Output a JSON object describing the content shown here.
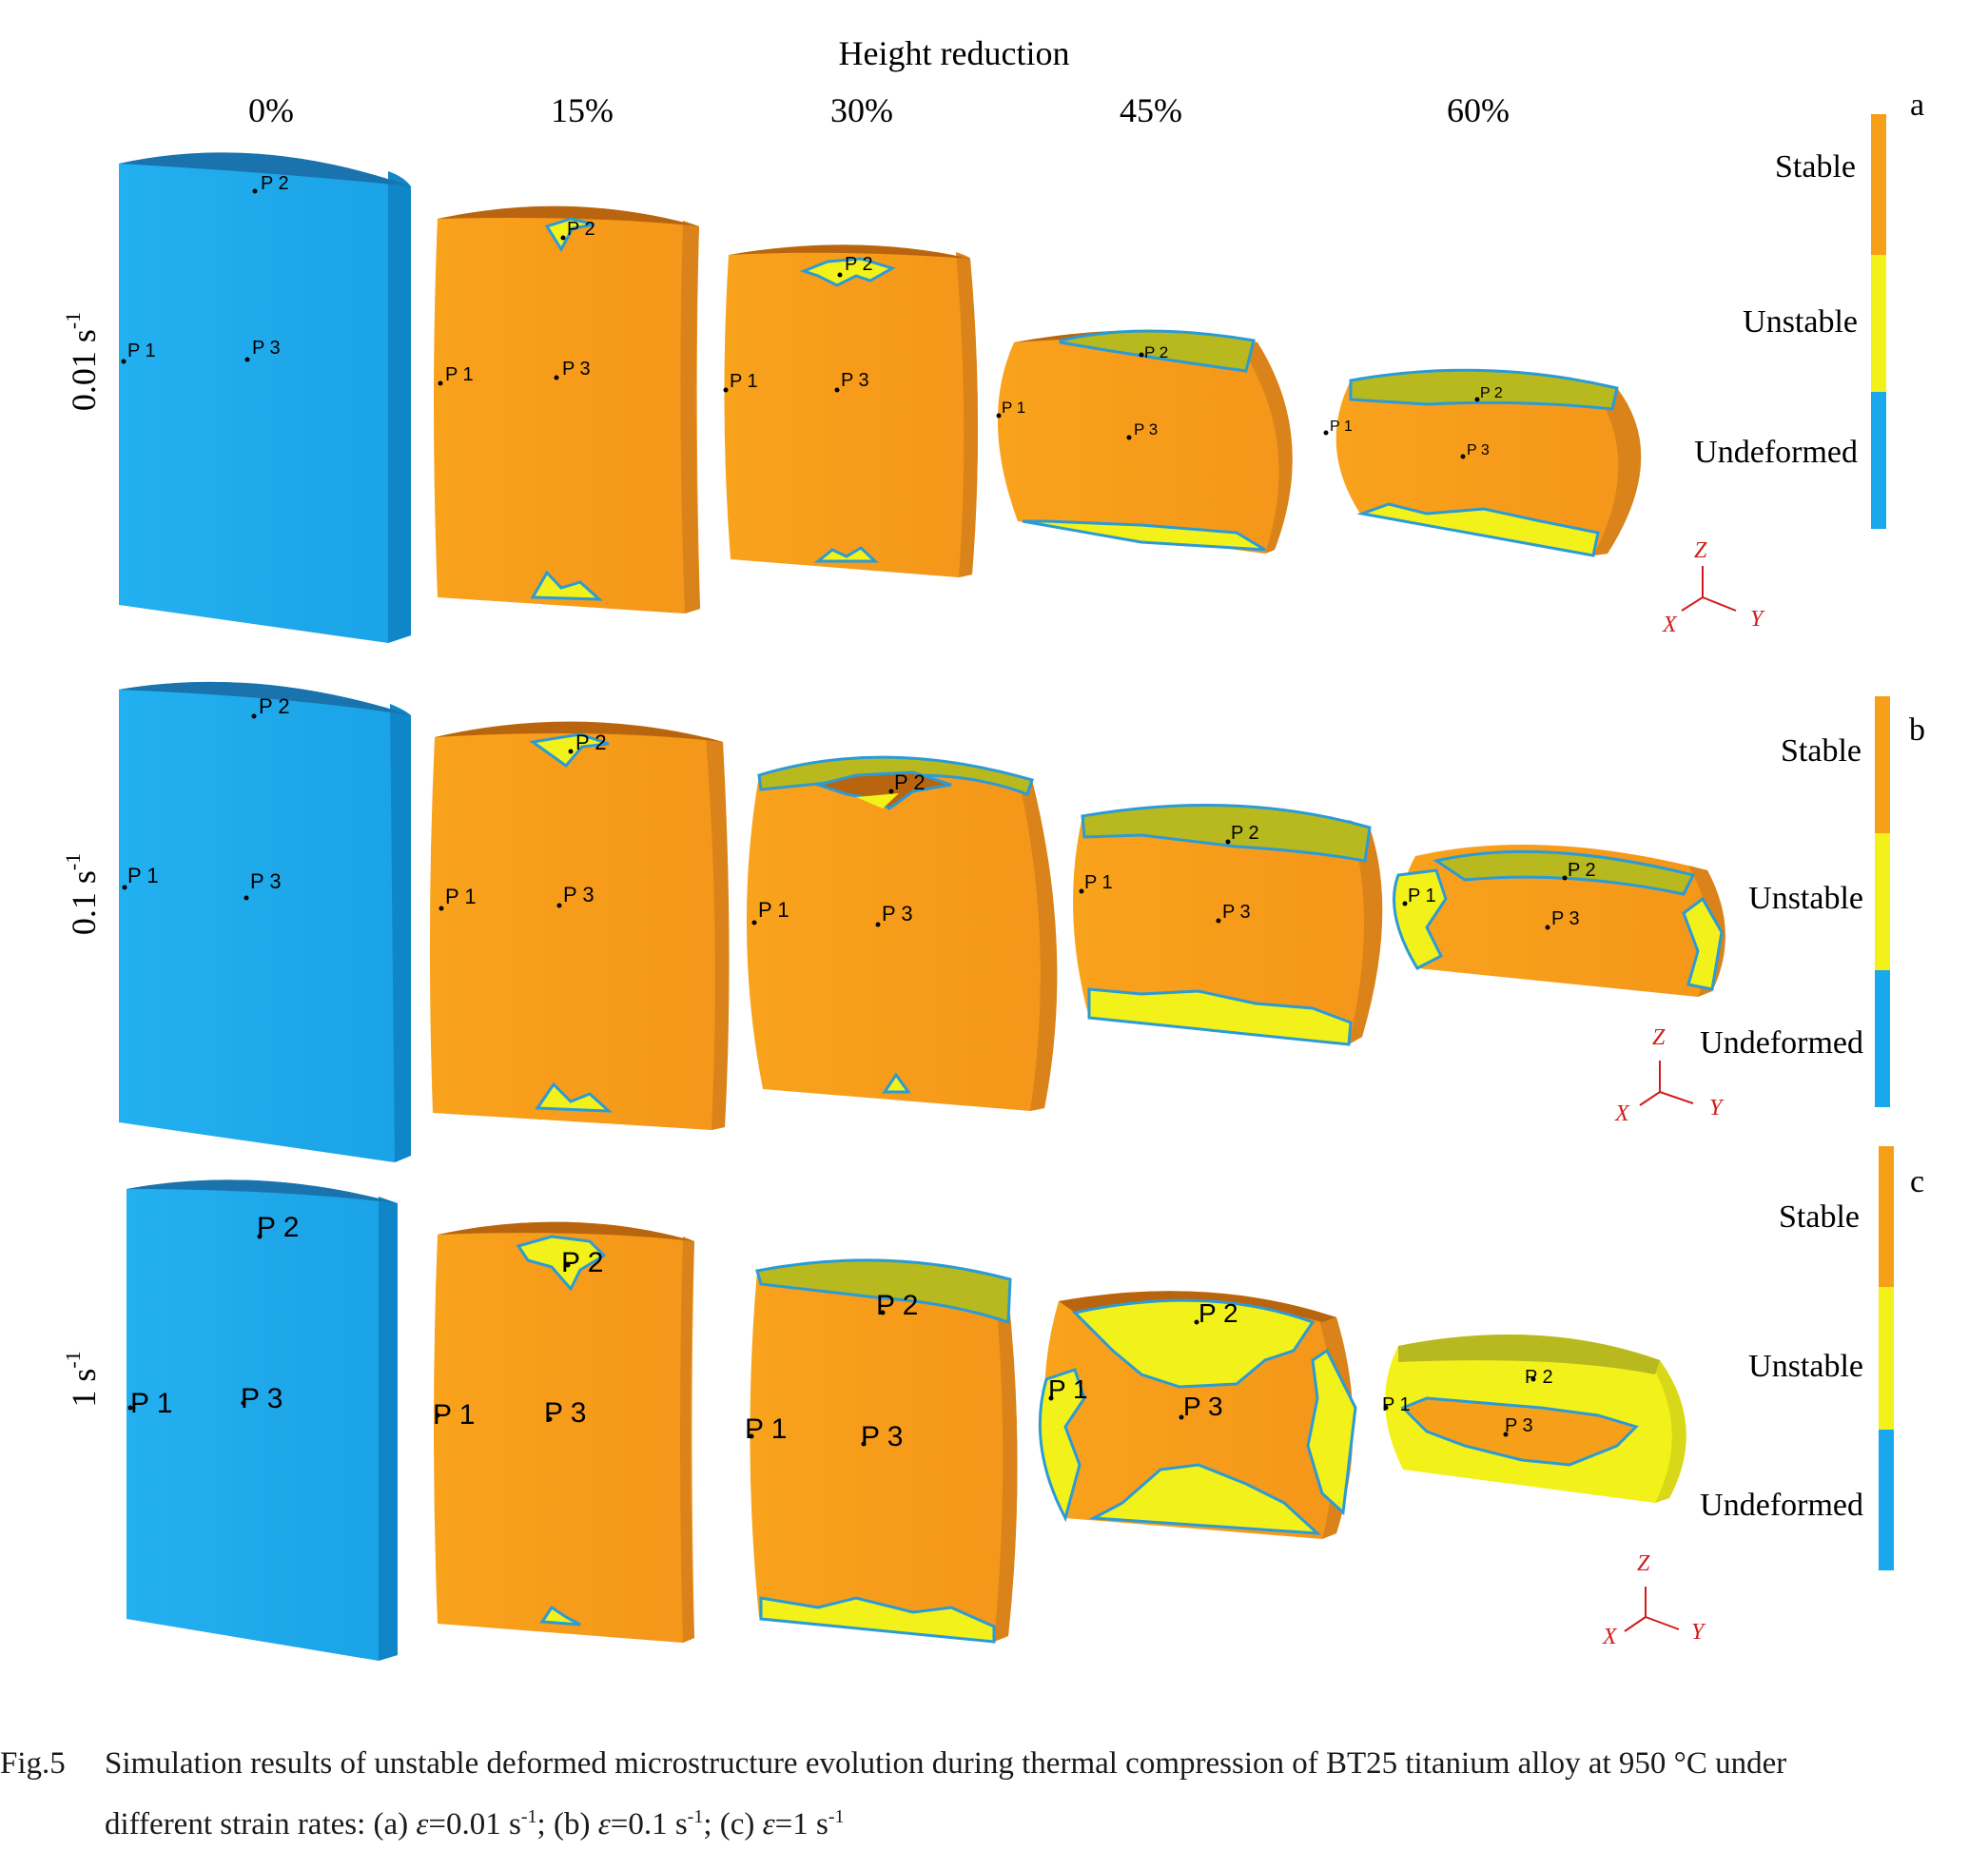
{
  "header": {
    "title": "Height reduction",
    "columns": [
      "0%",
      "15%",
      "30%",
      "45%",
      "60%"
    ]
  },
  "rows": [
    {
      "panel": "a",
      "rate": "0.01 s",
      "rate_sup": "-1"
    },
    {
      "panel": "b",
      "rate": "0.1 s",
      "rate_sup": "-1"
    },
    {
      "panel": "c",
      "rate": "1 s",
      "rate_sup": "-1"
    }
  ],
  "legend": {
    "stable": "Stable",
    "unstable": "Unstable",
    "undeformed": "Undeformed"
  },
  "points": {
    "p1": "P 1",
    "p2": "P 2",
    "p3": "P 3"
  },
  "axes": {
    "z": "Z",
    "x": "X",
    "y": "Y"
  },
  "colors": {
    "undeformed": "#19a8ec",
    "undeformed_side": "#0f86c8",
    "undeformed_top": "#1a73ad",
    "stable": "#f6a019",
    "stable_side": "#d9831a",
    "stable_top": "#b9650f",
    "unstable": "#f2f21a",
    "unstable_top": "#b8b81f",
    "outline": "#2b9bd6",
    "axis": "#d11b1b"
  },
  "caption": {
    "label": "Fig.5",
    "line1": "Simulation results of unstable deformed microstructure evolution during thermal compression of BT25 titanium alloy at 950 °C under",
    "line2_pre": "different strain rates: (a) ",
    "eps": "ε",
    "a": "=0.01 s",
    "b": "=0.1 s",
    "c": "=1 s",
    "sup": "-1",
    "sep1": "; (b) ",
    "sep2": "; (c) "
  }
}
